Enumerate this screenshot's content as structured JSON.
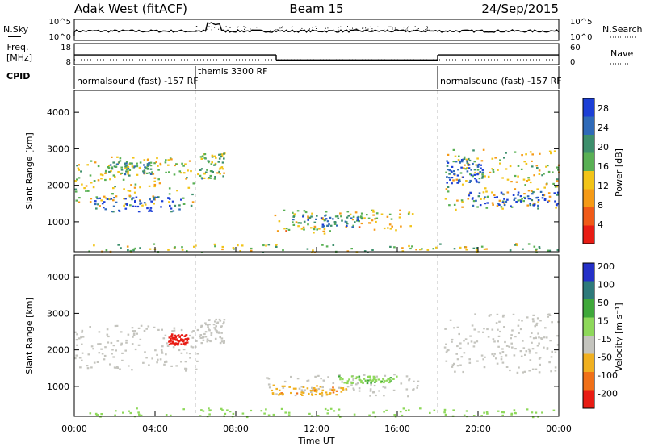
{
  "header": {
    "station": "Adak West (fitACF)",
    "beam": "Beam 15",
    "date": "24/Sep/2015"
  },
  "status_panels": {
    "nsky": {
      "left_label": "N.Sky",
      "left_ticks": [
        "10^5",
        "10^0"
      ],
      "right_label": "N.Search",
      "right_ticks": [
        "10^5",
        "10^0"
      ]
    },
    "freq": {
      "left_label_line1": "Freq.",
      "left_label_line2": "[MHz]",
      "left_ticks": [
        "18",
        "8"
      ],
      "right_label": "Nave",
      "right_ticks": [
        "60",
        "0"
      ],
      "freq_steps": [
        {
          "t_start": 0,
          "t_end": 10,
          "value": 12.6
        },
        {
          "t_start": 10,
          "t_end": 18,
          "value": 10.2
        },
        {
          "t_start": 18,
          "t_end": 24,
          "value": 12.6
        }
      ]
    },
    "cpid": {
      "label": "CPID",
      "segments": [
        {
          "t_start": 0,
          "t_end": 6,
          "text": "normalsound (fast) -157 RF"
        },
        {
          "t_start": 6,
          "t_end": 18,
          "text": "themis 3300 RF"
        },
        {
          "t_start": 18,
          "t_end": 24,
          "text": "normalsound (fast) -157 RF"
        }
      ]
    }
  },
  "chart_data": [
    {
      "type": "heatmap",
      "quantity": "power",
      "ylabel": "Slant Range [km]",
      "yticks": [
        1000,
        2000,
        3000,
        4000
      ],
      "ylim": [
        180,
        4600
      ],
      "xlim": [
        0,
        24
      ],
      "colorbar": {
        "label": "Power [dB]",
        "ticks": [
          "4",
          "8",
          "12",
          "16",
          "20",
          "24",
          "28"
        ],
        "range": [
          0,
          30
        ],
        "colors": [
          "#1c3fd6",
          "#2f6ab8",
          "#3d8f6c",
          "#59b054",
          "#f2c418",
          "#f59a16",
          "#f05a18",
          "#e81c14"
        ]
      },
      "regions": [
        {
          "t_start": 0.0,
          "t_end": 6.2,
          "r_low": 1450,
          "r_high": 2800,
          "level": 14
        },
        {
          "t_start": 1.0,
          "t_end": 5.4,
          "r_low": 1300,
          "r_high": 1700,
          "level": 28
        },
        {
          "t_start": 1.6,
          "t_end": 3.8,
          "r_low": 2300,
          "r_high": 2700,
          "level": 19
        },
        {
          "t_start": 6.2,
          "t_end": 7.4,
          "r_low": 2200,
          "r_high": 2900,
          "level": 17
        },
        {
          "t_start": 9.8,
          "t_end": 16.8,
          "r_low": 700,
          "r_high": 1350,
          "level": 13
        },
        {
          "t_start": 10.8,
          "t_end": 14.2,
          "r_low": 880,
          "r_high": 1220,
          "level": 22
        },
        {
          "t_start": 18.3,
          "t_end": 24.0,
          "r_low": 1350,
          "r_high": 3000,
          "level": 14
        },
        {
          "t_start": 18.4,
          "t_end": 20.2,
          "r_low": 2050,
          "r_high": 2750,
          "level": 26
        },
        {
          "t_start": 19.5,
          "t_end": 24.0,
          "r_low": 1450,
          "r_high": 1850,
          "level": 28
        },
        {
          "t_start": 0.0,
          "t_end": 24.0,
          "r_low": 180,
          "r_high": 420,
          "level": 16
        }
      ]
    },
    {
      "type": "heatmap",
      "quantity": "velocity",
      "xlabel": "Time UT",
      "ylabel": "Slant Range [km]",
      "yticks": [
        1000,
        2000,
        3000,
        4000
      ],
      "ylim": [
        180,
        4600
      ],
      "xlim": [
        0,
        24
      ],
      "xticks": [
        "00:00",
        "04:00",
        "08:00",
        "12:00",
        "16:00",
        "20:00",
        "00:00"
      ],
      "xtick_hours": [
        0,
        4,
        8,
        12,
        16,
        20,
        24
      ],
      "colorbar": {
        "label": "Velocity [m s⁻¹]",
        "ticks": [
          "200",
          "100",
          "50",
          "15",
          "-15",
          "-50",
          "-100",
          "-200"
        ],
        "colors": [
          "#2430c8",
          "#2e7a7a",
          "#3fa83a",
          "#8ed85a",
          "#c4c4be",
          "#f0b020",
          "#f07018",
          "#e81c14"
        ]
      },
      "regions": [
        {
          "t_start": 0.0,
          "t_end": 6.2,
          "r_low": 1450,
          "r_high": 2700,
          "vel": 0
        },
        {
          "t_start": 4.6,
          "t_end": 5.6,
          "r_low": 2150,
          "r_high": 2450,
          "vel": -160
        },
        {
          "t_start": 6.2,
          "t_end": 7.4,
          "r_low": 2200,
          "r_high": 2900,
          "vel": 0
        },
        {
          "t_start": 9.5,
          "t_end": 17.0,
          "r_low": 750,
          "r_high": 1350,
          "vel": 0
        },
        {
          "t_start": 9.6,
          "t_end": 13.5,
          "r_low": 780,
          "r_high": 1050,
          "vel": -40
        },
        {
          "t_start": 13.0,
          "t_end": 16.0,
          "r_low": 1100,
          "r_high": 1300,
          "vel": 40
        },
        {
          "t_start": 18.3,
          "t_end": 24.0,
          "r_low": 1400,
          "r_high": 3000,
          "vel": 0
        },
        {
          "t_start": 0.0,
          "t_end": 24.0,
          "r_low": 180,
          "r_high": 420,
          "vel": 30
        }
      ]
    }
  ]
}
